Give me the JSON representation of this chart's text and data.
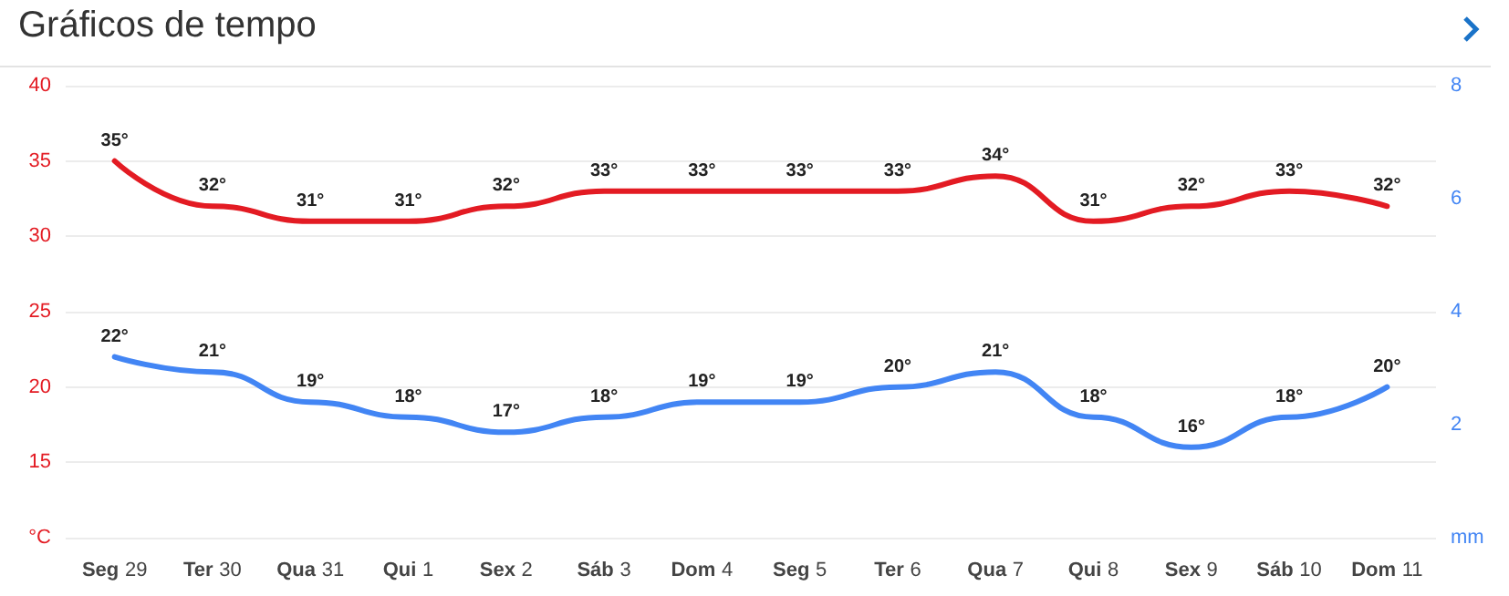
{
  "chart_data": {
    "type": "line",
    "title": "Gráficos de tempo",
    "categories": [
      "Seg 29",
      "Ter 30",
      "Qua 31",
      "Qui 1",
      "Sex 2",
      "Sáb 3",
      "Dom 4",
      "Seg 5",
      "Ter 6",
      "Qua 7",
      "Qui 8",
      "Sex 9",
      "Sáb 10",
      "Dom 11"
    ],
    "series": [
      {
        "color": "#e31b23",
        "values": [
          35,
          32,
          31,
          31,
          32,
          33,
          33,
          33,
          33,
          34,
          31,
          32,
          33,
          32
        ],
        "value_labels": [
          "35°",
          "32°",
          "31°",
          "31°",
          "32°",
          "33°",
          "33°",
          "33°",
          "33°",
          "34°",
          "31°",
          "32°",
          "33°",
          "32°"
        ]
      },
      {
        "color": "#4285f4",
        "values": [
          22,
          21,
          19,
          18,
          17,
          18,
          19,
          19,
          20,
          21,
          18,
          16,
          18,
          20
        ],
        "value_labels": [
          "22°",
          "21°",
          "19°",
          "18°",
          "17°",
          "18°",
          "19°",
          "19°",
          "20°",
          "21°",
          "18°",
          "16°",
          "18°",
          "20°"
        ]
      }
    ],
    "ylim": [
      10,
      40
    ],
    "yticks": [
      {
        "value": 10,
        "label": "°C"
      },
      15,
      20,
      25,
      30,
      35,
      40
    ],
    "y2lim": [
      0,
      8
    ],
    "y2ticks": [
      {
        "value": 0,
        "label": "mm"
      },
      2,
      4,
      6,
      8
    ],
    "grid": "y",
    "marker": "none",
    "line_style": "solid"
  }
}
